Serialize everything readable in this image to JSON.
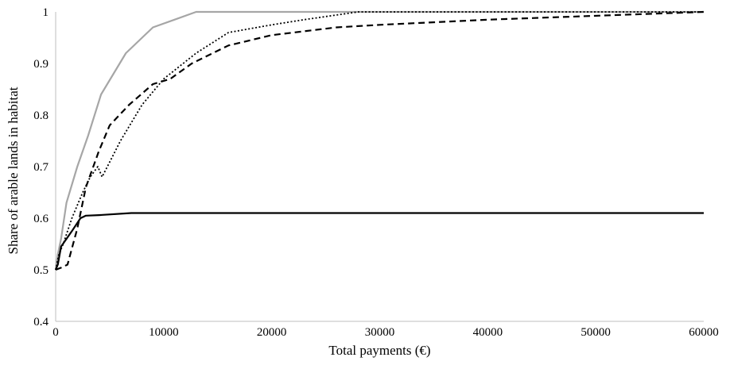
{
  "chart_data": {
    "type": "line",
    "title": "",
    "xlabel": "Total payments (€)",
    "ylabel": "Share of arable lands in habitat",
    "xlim": [
      0,
      60000
    ],
    "ylim": [
      0.4,
      1.0
    ],
    "x_ticks": [
      0,
      10000,
      20000,
      30000,
      40000,
      50000,
      60000
    ],
    "x_tick_labels": [
      "0",
      "10000",
      "20000",
      "30000",
      "40000",
      "50000",
      "60000"
    ],
    "y_ticks": [
      0.4,
      0.5,
      0.6,
      0.7,
      0.8,
      0.9,
      1.0
    ],
    "y_tick_labels": [
      "0.4",
      "0.5",
      "0.6",
      "0.7",
      "0.8",
      "0.9",
      "1"
    ],
    "grid": false,
    "legend": "none",
    "series": [
      {
        "style": "solid-gray",
        "color": "#a6a6a6",
        "x": [
          0,
          200,
          500,
          1000,
          2000,
          3000,
          4200,
          6500,
          9000,
          11000,
          13000,
          20000,
          30000,
          40000,
          60000
        ],
        "y": [
          0.5,
          0.53,
          0.56,
          0.63,
          0.7,
          0.76,
          0.84,
          0.92,
          0.97,
          0.985,
          1.0,
          1.0,
          1.0,
          1.0,
          1.0
        ]
      },
      {
        "style": "dashed-black",
        "color": "#000000",
        "x": [
          0,
          600,
          1100,
          2000,
          2800,
          4000,
          5000,
          6800,
          9000,
          10600,
          12600,
          16000,
          20000,
          26000,
          30000,
          40000,
          60000
        ],
        "y": [
          0.5,
          0.505,
          0.51,
          0.58,
          0.66,
          0.73,
          0.78,
          0.82,
          0.86,
          0.87,
          0.9,
          0.935,
          0.955,
          0.97,
          0.975,
          0.985,
          1.0
        ]
      },
      {
        "style": "dotted-black",
        "color": "#000000",
        "x": [
          0,
          300,
          700,
          1500,
          2500,
          3200,
          3900,
          4300,
          6000,
          8000,
          10000,
          13000,
          16000,
          20000,
          23000,
          28000,
          40000,
          60000
        ],
        "y": [
          0.5,
          0.53,
          0.55,
          0.6,
          0.65,
          0.68,
          0.7,
          0.68,
          0.75,
          0.82,
          0.87,
          0.92,
          0.96,
          0.975,
          0.985,
          1.0,
          1.0,
          1.0
        ]
      },
      {
        "style": "solid-black",
        "color": "#000000",
        "x": [
          0,
          200,
          500,
          1000,
          1500,
          2300,
          2800,
          4000,
          7000,
          20000,
          40000,
          60000
        ],
        "y": [
          0.5,
          0.51,
          0.545,
          0.56,
          0.575,
          0.6,
          0.605,
          0.606,
          0.61,
          0.61,
          0.61,
          0.61
        ]
      }
    ]
  }
}
